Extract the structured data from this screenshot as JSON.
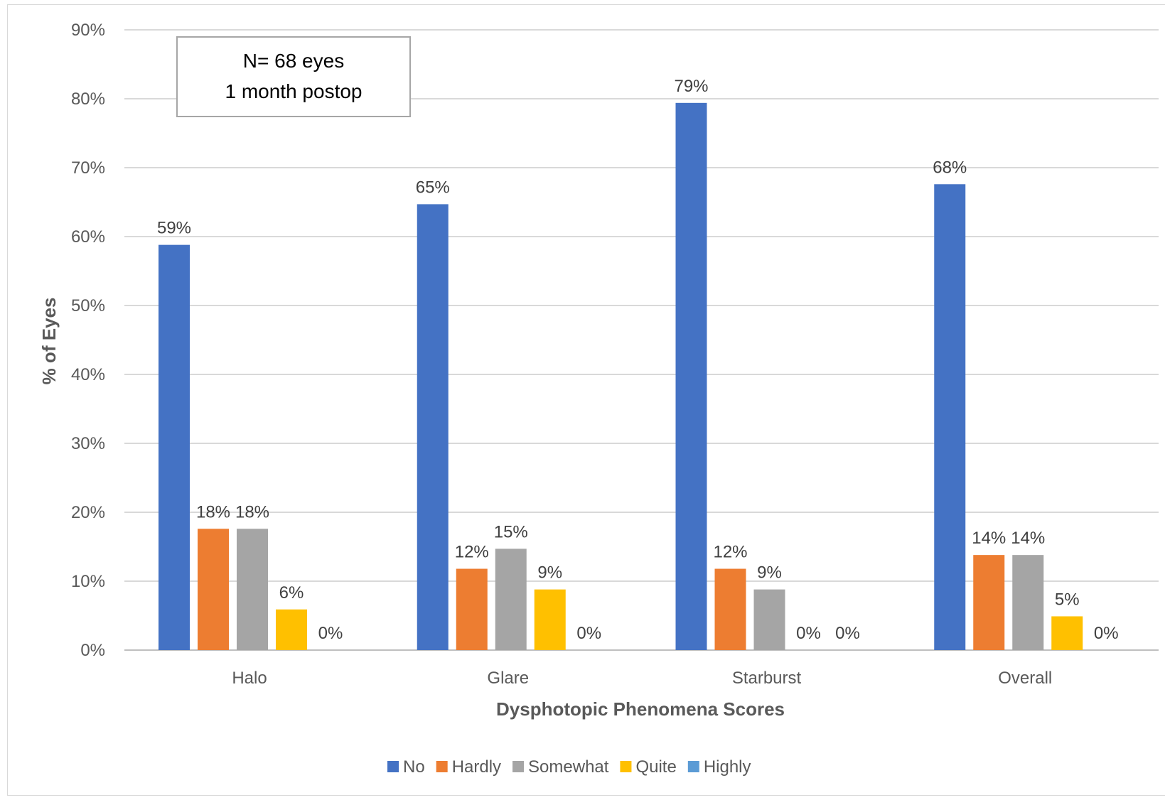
{
  "chart_data": {
    "type": "bar",
    "title": "",
    "xlabel": "Dysphotopic Phenomena Scores",
    "ylabel": "% of Eyes",
    "ylim": [
      0,
      90
    ],
    "y_ticks": [
      "0%",
      "10%",
      "20%",
      "30%",
      "40%",
      "50%",
      "60%",
      "70%",
      "80%",
      "90%"
    ],
    "y_tick_values": [
      0,
      10,
      20,
      30,
      40,
      50,
      60,
      70,
      80,
      90
    ],
    "categories": [
      "Halo",
      "Glare",
      "Starburst",
      "Overall"
    ],
    "series": [
      {
        "name": "No",
        "color": "#4472C4",
        "values": [
          58.8,
          64.7,
          79.4,
          67.6
        ],
        "labels": [
          "59%",
          "65%",
          "79%",
          "68%"
        ]
      },
      {
        "name": "Hardly",
        "color": "#ED7D31",
        "values": [
          17.6,
          11.8,
          11.8,
          13.8
        ],
        "labels": [
          "18%",
          "12%",
          "12%",
          "14%"
        ]
      },
      {
        "name": "Somewhat",
        "color": "#A5A5A5",
        "values": [
          17.6,
          14.7,
          8.8,
          13.8
        ],
        "labels": [
          "18%",
          "15%",
          "9%",
          "14%"
        ]
      },
      {
        "name": "Quite",
        "color": "#FFC000",
        "values": [
          5.9,
          8.8,
          0,
          4.9
        ],
        "labels": [
          "6%",
          "9%",
          "0%",
          "5%"
        ]
      },
      {
        "name": "Highly",
        "color": "#5B9BD5",
        "values": [
          0,
          0,
          0,
          0
        ],
        "labels": [
          "0%",
          "0%",
          "0%",
          "0%"
        ]
      }
    ],
    "grid": true,
    "legend_position": "bottom",
    "annotation": {
      "line1": "N= 68 eyes",
      "line2": "1 month postop"
    }
  }
}
